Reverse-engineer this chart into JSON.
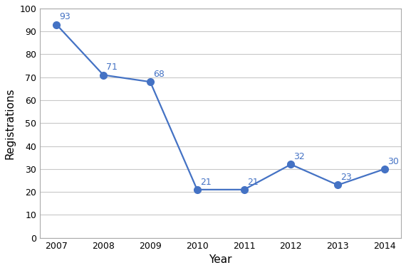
{
  "years": [
    2007,
    2008,
    2009,
    2010,
    2011,
    2012,
    2013,
    2014
  ],
  "values": [
    93,
    71,
    68,
    21,
    21,
    32,
    23,
    30
  ],
  "line_color": "#4472C4",
  "marker_color": "#4472C4",
  "xlabel": "Year",
  "ylabel": "Registrations",
  "ylim": [
    0,
    100
  ],
  "yticks": [
    0,
    10,
    20,
    30,
    40,
    50,
    60,
    70,
    80,
    90,
    100
  ],
  "grid_color": "#c8c8c8",
  "background_color": "#ffffff",
  "plot_bg_color": "#ffffff",
  "label_fontsize": 9,
  "axis_label_fontsize": 11,
  "marker_size": 7,
  "line_width": 1.6,
  "spine_color": "#aaaaaa"
}
